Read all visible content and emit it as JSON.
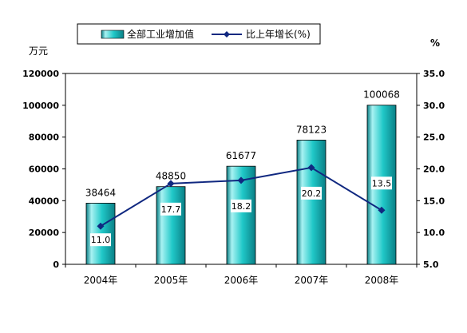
{
  "chart_data": {
    "type": "bar",
    "categories": [
      "2004年",
      "2005年",
      "2006年",
      "2007年",
      "2008年"
    ],
    "series": [
      {
        "name": "全部工业增加值",
        "type": "bar",
        "axis": "left",
        "values": [
          38464,
          48850,
          61677,
          78123,
          100068
        ]
      },
      {
        "name": "比上年增长(%)",
        "type": "line",
        "axis": "right",
        "values": [
          11.0,
          17.7,
          18.2,
          20.2,
          13.5
        ]
      }
    ],
    "bar_labels": [
      "38464",
      "48850",
      "61677",
      "78123",
      "100068"
    ],
    "line_labels": [
      "11.0",
      "17.7",
      "18.2",
      "20.2",
      "13.5"
    ],
    "y_left": {
      "unit": "万元",
      "ylim": [
        0,
        120000
      ],
      "ticks": [
        0,
        20000,
        40000,
        60000,
        80000,
        100000,
        120000
      ],
      "tick_labels": [
        "0",
        "20000",
        "40000",
        "60000",
        "80000",
        "100000",
        "120000"
      ]
    },
    "y_right": {
      "unit": "%",
      "ylim": [
        5.0,
        35.0
      ],
      "ticks": [
        5.0,
        10.0,
        15.0,
        20.0,
        25.0,
        30.0,
        35.0
      ],
      "tick_labels": [
        "5.0",
        "10.0",
        "15.0",
        "20.0",
        "25.0",
        "30.0",
        "35.0"
      ]
    },
    "legend_position": "top",
    "grid": false,
    "colors": {
      "bar_fill": "#20c8c8",
      "bar_light": "#a8f2f2",
      "bar_dark": "#0a7f86",
      "line": "#102880",
      "axis": "#000000"
    }
  }
}
